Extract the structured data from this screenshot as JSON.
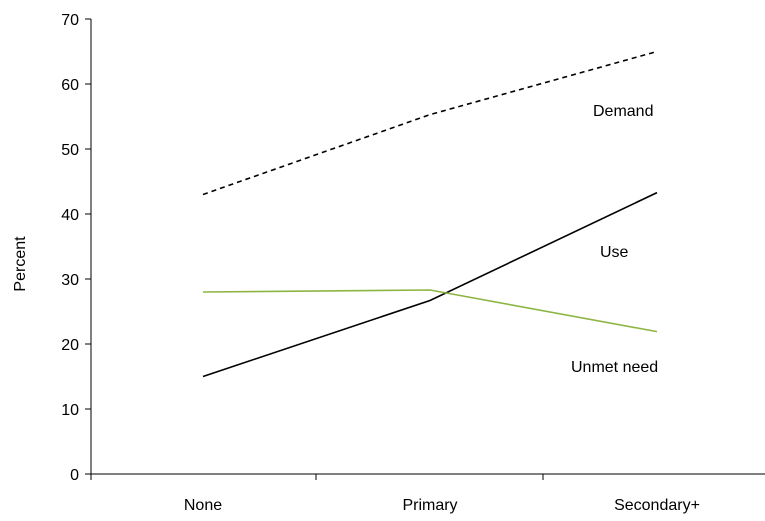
{
  "chart_data": {
    "type": "line",
    "categories": [
      "None",
      "Primary",
      "Secondary+"
    ],
    "xlabel": "",
    "ylabel": "Percent",
    "ylim": [
      0,
      70
    ],
    "yticks": [
      0,
      10,
      20,
      30,
      40,
      50,
      60,
      70
    ],
    "grid": false,
    "legend": "none",
    "series": [
      {
        "name": "Demand",
        "values": [
          43,
          55.3,
          65
        ],
        "color": "#000000",
        "dash": "dashed"
      },
      {
        "name": "Use",
        "values": [
          15,
          26.7,
          43.3
        ],
        "color": "#000000",
        "dash": "solid"
      },
      {
        "name": "Unmet need",
        "values": [
          28,
          28.3,
          21.9
        ],
        "color": "#8db543",
        "dash": "solid"
      }
    ]
  }
}
